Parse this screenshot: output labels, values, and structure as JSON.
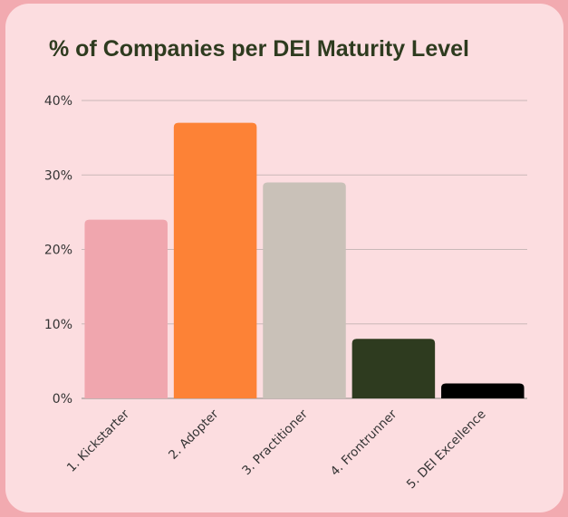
{
  "chart_data": {
    "type": "bar",
    "title": "% of Companies per DEI Maturity Level",
    "categories": [
      "1. Kickstarter",
      "2. Adopter",
      "3. Practitioner",
      "4. Frontrunner",
      "5. DEI Excellence"
    ],
    "values": [
      24,
      37,
      29,
      8,
      2
    ],
    "colors": [
      "#f0a6ae",
      "#fd8236",
      "#c9c1b8",
      "#2e3b1f",
      "#000000"
    ],
    "ylim": [
      0,
      40
    ],
    "yticks": [
      0,
      10,
      20,
      30,
      40
    ],
    "ytick_labels": [
      "0%",
      "10%",
      "20%",
      "30%",
      "40%"
    ],
    "xlabel": "",
    "ylabel": "",
    "grid": true,
    "background": "#fcdde0",
    "frame": "#f2aab0"
  }
}
